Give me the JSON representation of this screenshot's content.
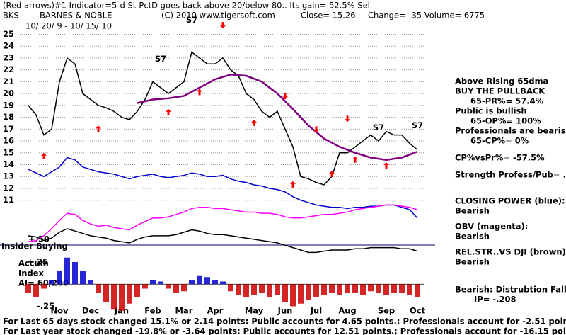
{
  "chart_data": [
    {
      "type": "line",
      "title": "(Red arrows)#1 Indicator=5-d St-PctD goes back above 20/below 80.. Its gain= 52.5% Sell",
      "header_items": [
        "BKS",
        "BARNES & NOBLE",
        "(C) 2010 www.tigersoft.com",
        "Close= 15.26",
        "Change=-.35 Volume= 6775"
      ],
      "date_range": "10/ 20/ 9 - 10/ 15/ 10",
      "insider_labels": [
        "+.50",
        "Insider Buying"
      ],
      "categories": [
        null,
        null,
        null,
        null,
        "Nov",
        null,
        null,
        null,
        "Dec",
        null,
        null,
        null,
        "Jan",
        null,
        null,
        null,
        "Feb",
        null,
        null,
        null,
        "Mar",
        null,
        null,
        null,
        "Apr",
        null,
        null,
        null,
        null,
        "May",
        null,
        null,
        null,
        "Jun",
        null,
        null,
        null,
        "Jul",
        null,
        null,
        null,
        "Aug",
        null,
        null,
        null,
        null,
        "Sep",
        null,
        null,
        null,
        "Oct"
      ],
      "ylim": [
        6.5,
        27
      ],
      "yticks": [
        11,
        12,
        13,
        14,
        15,
        16,
        17,
        18,
        19,
        20,
        21,
        22,
        23,
        24,
        25
      ],
      "grid": true,
      "series": [
        {
          "color": "#000000",
          "values": [
            19,
            18.2,
            16.5,
            17,
            21,
            23,
            22.5,
            20,
            19.5,
            19,
            18.8,
            18.5,
            18,
            17.8,
            18.5,
            19.5,
            21,
            20.5,
            20,
            20.5,
            21,
            23.5,
            23,
            22.5,
            22.5,
            23,
            22,
            21.5,
            20,
            19.5,
            18.5,
            18,
            18.5,
            17,
            15.5,
            13,
            12.8,
            12.5,
            12.3,
            13,
            15,
            15,
            15.5,
            16,
            16.5,
            16,
            16.8,
            16.5,
            16.5,
            15.8,
            15.26
          ]
        },
        {
          "color": "#800080",
          "values": [
            null,
            null,
            null,
            null,
            null,
            null,
            null,
            null,
            null,
            null,
            null,
            null,
            null,
            null,
            19.2,
            19.35,
            19.5,
            19.55,
            19.6,
            19.7,
            19.8,
            20.15,
            20.5,
            20.85,
            21.2,
            21.4,
            21.6,
            21.55,
            21.5,
            21.25,
            21,
            20.5,
            20,
            19.35,
            18.7,
            18,
            17.3,
            16.75,
            16.2,
            15.85,
            15.5,
            15.25,
            15,
            14.8,
            14.6,
            14.5,
            14.4,
            14.5,
            14.6,
            14.85,
            15.1
          ]
        },
        {
          "name": "CLOSING POWER (blue):",
          "status": "Bearish",
          "color": "#0000cc",
          "values": [
            13.6,
            13.3,
            13.0,
            13.4,
            13.8,
            14.6,
            14.4,
            13.8,
            13.6,
            13.4,
            13.3,
            13.2,
            13.0,
            12.8,
            13.0,
            13.1,
            13.2,
            13.0,
            12.9,
            13.0,
            13.1,
            13.3,
            13.2,
            13.0,
            13.0,
            13.1,
            12.8,
            12.6,
            12.5,
            12.3,
            12.2,
            12.0,
            11.9,
            11.7,
            11.3,
            11.0,
            10.8,
            10.6,
            10.5,
            10.4,
            10.4,
            10.3,
            10.4,
            10.4,
            10.5,
            10.5,
            10.6,
            10.6,
            10.4,
            10.2,
            9.5
          ]
        },
        {
          "name": "OBV (magenta):",
          "status": "Bearish",
          "color": "#ff00ff",
          "values": [
            7.5,
            7.6,
            8.0,
            8.6,
            9.3,
            9.9,
            9.8,
            9.3,
            9.0,
            8.8,
            8.9,
            8.7,
            8.6,
            8.5,
            8.9,
            9.2,
            9.5,
            9.5,
            9.6,
            9.8,
            10.0,
            10.3,
            10.4,
            10.4,
            10.3,
            10.3,
            10.2,
            10.1,
            10.0,
            10.0,
            9.9,
            9.9,
            9.8,
            9.6,
            9.5,
            9.5,
            9.6,
            9.7,
            9.8,
            9.8,
            9.9,
            10.0,
            10.2,
            10.3,
            10.4,
            10.5,
            10.6,
            10.6,
            10.5,
            10.4,
            10.2
          ]
        },
        {
          "name": "REL.STR..VS DJI (brown):",
          "status": "Bearish",
          "color": "#000000",
          "values": [
            8.0,
            7.9,
            7.6,
            7.8,
            8.3,
            8.6,
            8.4,
            8.2,
            8.0,
            7.9,
            7.8,
            7.6,
            7.5,
            7.4,
            7.7,
            7.9,
            8.0,
            8.0,
            8.0,
            8.1,
            8.3,
            8.5,
            8.4,
            8.2,
            8.1,
            8.1,
            8.0,
            7.9,
            7.8,
            7.7,
            7.6,
            7.5,
            7.4,
            7.2,
            7.0,
            6.8,
            6.6,
            6.6,
            6.7,
            6.8,
            6.8,
            6.8,
            6.9,
            6.9,
            7.0,
            7.0,
            7.0,
            7.0,
            6.9,
            6.9,
            6.7
          ]
        }
      ],
      "annotations": [
        {
          "text": "S7",
          "at": 21,
          "y": 26.2
        },
        {
          "text": "S7",
          "at": 17,
          "y": 22.9
        },
        {
          "text": "S7",
          "at": 45,
          "y": 17.1
        },
        {
          "text": "S7",
          "at": 50,
          "y": 17.3
        }
      ],
      "arrow_color": "#ff0000",
      "up_arrows": [
        {
          "at": 2,
          "y": 15.0
        },
        {
          "at": 9,
          "y": 17.3
        },
        {
          "at": 18,
          "y": 18.7
        },
        {
          "at": 22,
          "y": 20.4
        },
        {
          "at": 29,
          "y": 17.8
        },
        {
          "at": 34,
          "y": 12.6
        },
        {
          "at": 39,
          "y": 13.5
        },
        {
          "at": 42,
          "y": 14.7
        },
        {
          "at": 46,
          "y": 14.2
        }
      ],
      "down_arrows": [
        {
          "at": 25,
          "y": 25.5
        },
        {
          "at": 33,
          "y": 19.5
        },
        {
          "at": 37,
          "y": 16.7
        },
        {
          "at": 41,
          "y": 17.6
        }
      ],
      "panel_notes": [
        "Above Rising 65dma",
        "BUY THE PULLBACK",
        "65-PR%= 57.4%",
        "Public is bullish",
        "65-OP%= 100%",
        "Professionals are bearish",
        "65-CP%= 0%",
        "CP%vsPr%= -57.5%",
        "Strength Profess/Pub= .5"
      ],
      "footer": [
        "For Last 65 days stock changed  15.1% or  2.14 points:  Public accounts for  4.65 points.;  Professionals account for -2.51 points.",
        "For Last year stock changed -19.8% or -3.64 points:  Public accounts for  12.51 points.;  Professionals account for -16.15 points."
      ]
    },
    {
      "type": "bar",
      "title": "Accum",
      "subtitle": "Index",
      "note": "AI= 60/200",
      "ylim": [
        -0.35,
        0.41
      ],
      "yticks": [
        {
          "value": 0.25,
          "label": "+.25"
        },
        {
          "value": -0.25,
          "label": "-.25"
        }
      ],
      "pos_color": "#0000cc",
      "neg_color": "#cc0000",
      "values": [
        -0.1,
        -0.15,
        -0.05,
        0.05,
        0.15,
        0.3,
        0.25,
        0.15,
        0.05,
        -0.1,
        -0.2,
        -0.28,
        -0.3,
        -0.22,
        -0.15,
        -0.05,
        0.05,
        0.03,
        -0.05,
        -0.1,
        -0.08,
        0.05,
        0.1,
        0.08,
        0.05,
        0.03,
        -0.08,
        -0.12,
        -0.15,
        -0.12,
        -0.1,
        -0.15,
        -0.12,
        -0.2,
        -0.25,
        -0.22,
        -0.18,
        -0.15,
        -0.12,
        -0.1,
        -0.12,
        -0.1,
        -0.1,
        -0.12,
        -0.08,
        -0.1,
        -0.12,
        -0.1,
        -0.1,
        -0.12,
        -0.15
      ],
      "signal_lines": [
        "Bearish: Distrubtion Falling.",
        "IP= -.208"
      ]
    }
  ]
}
